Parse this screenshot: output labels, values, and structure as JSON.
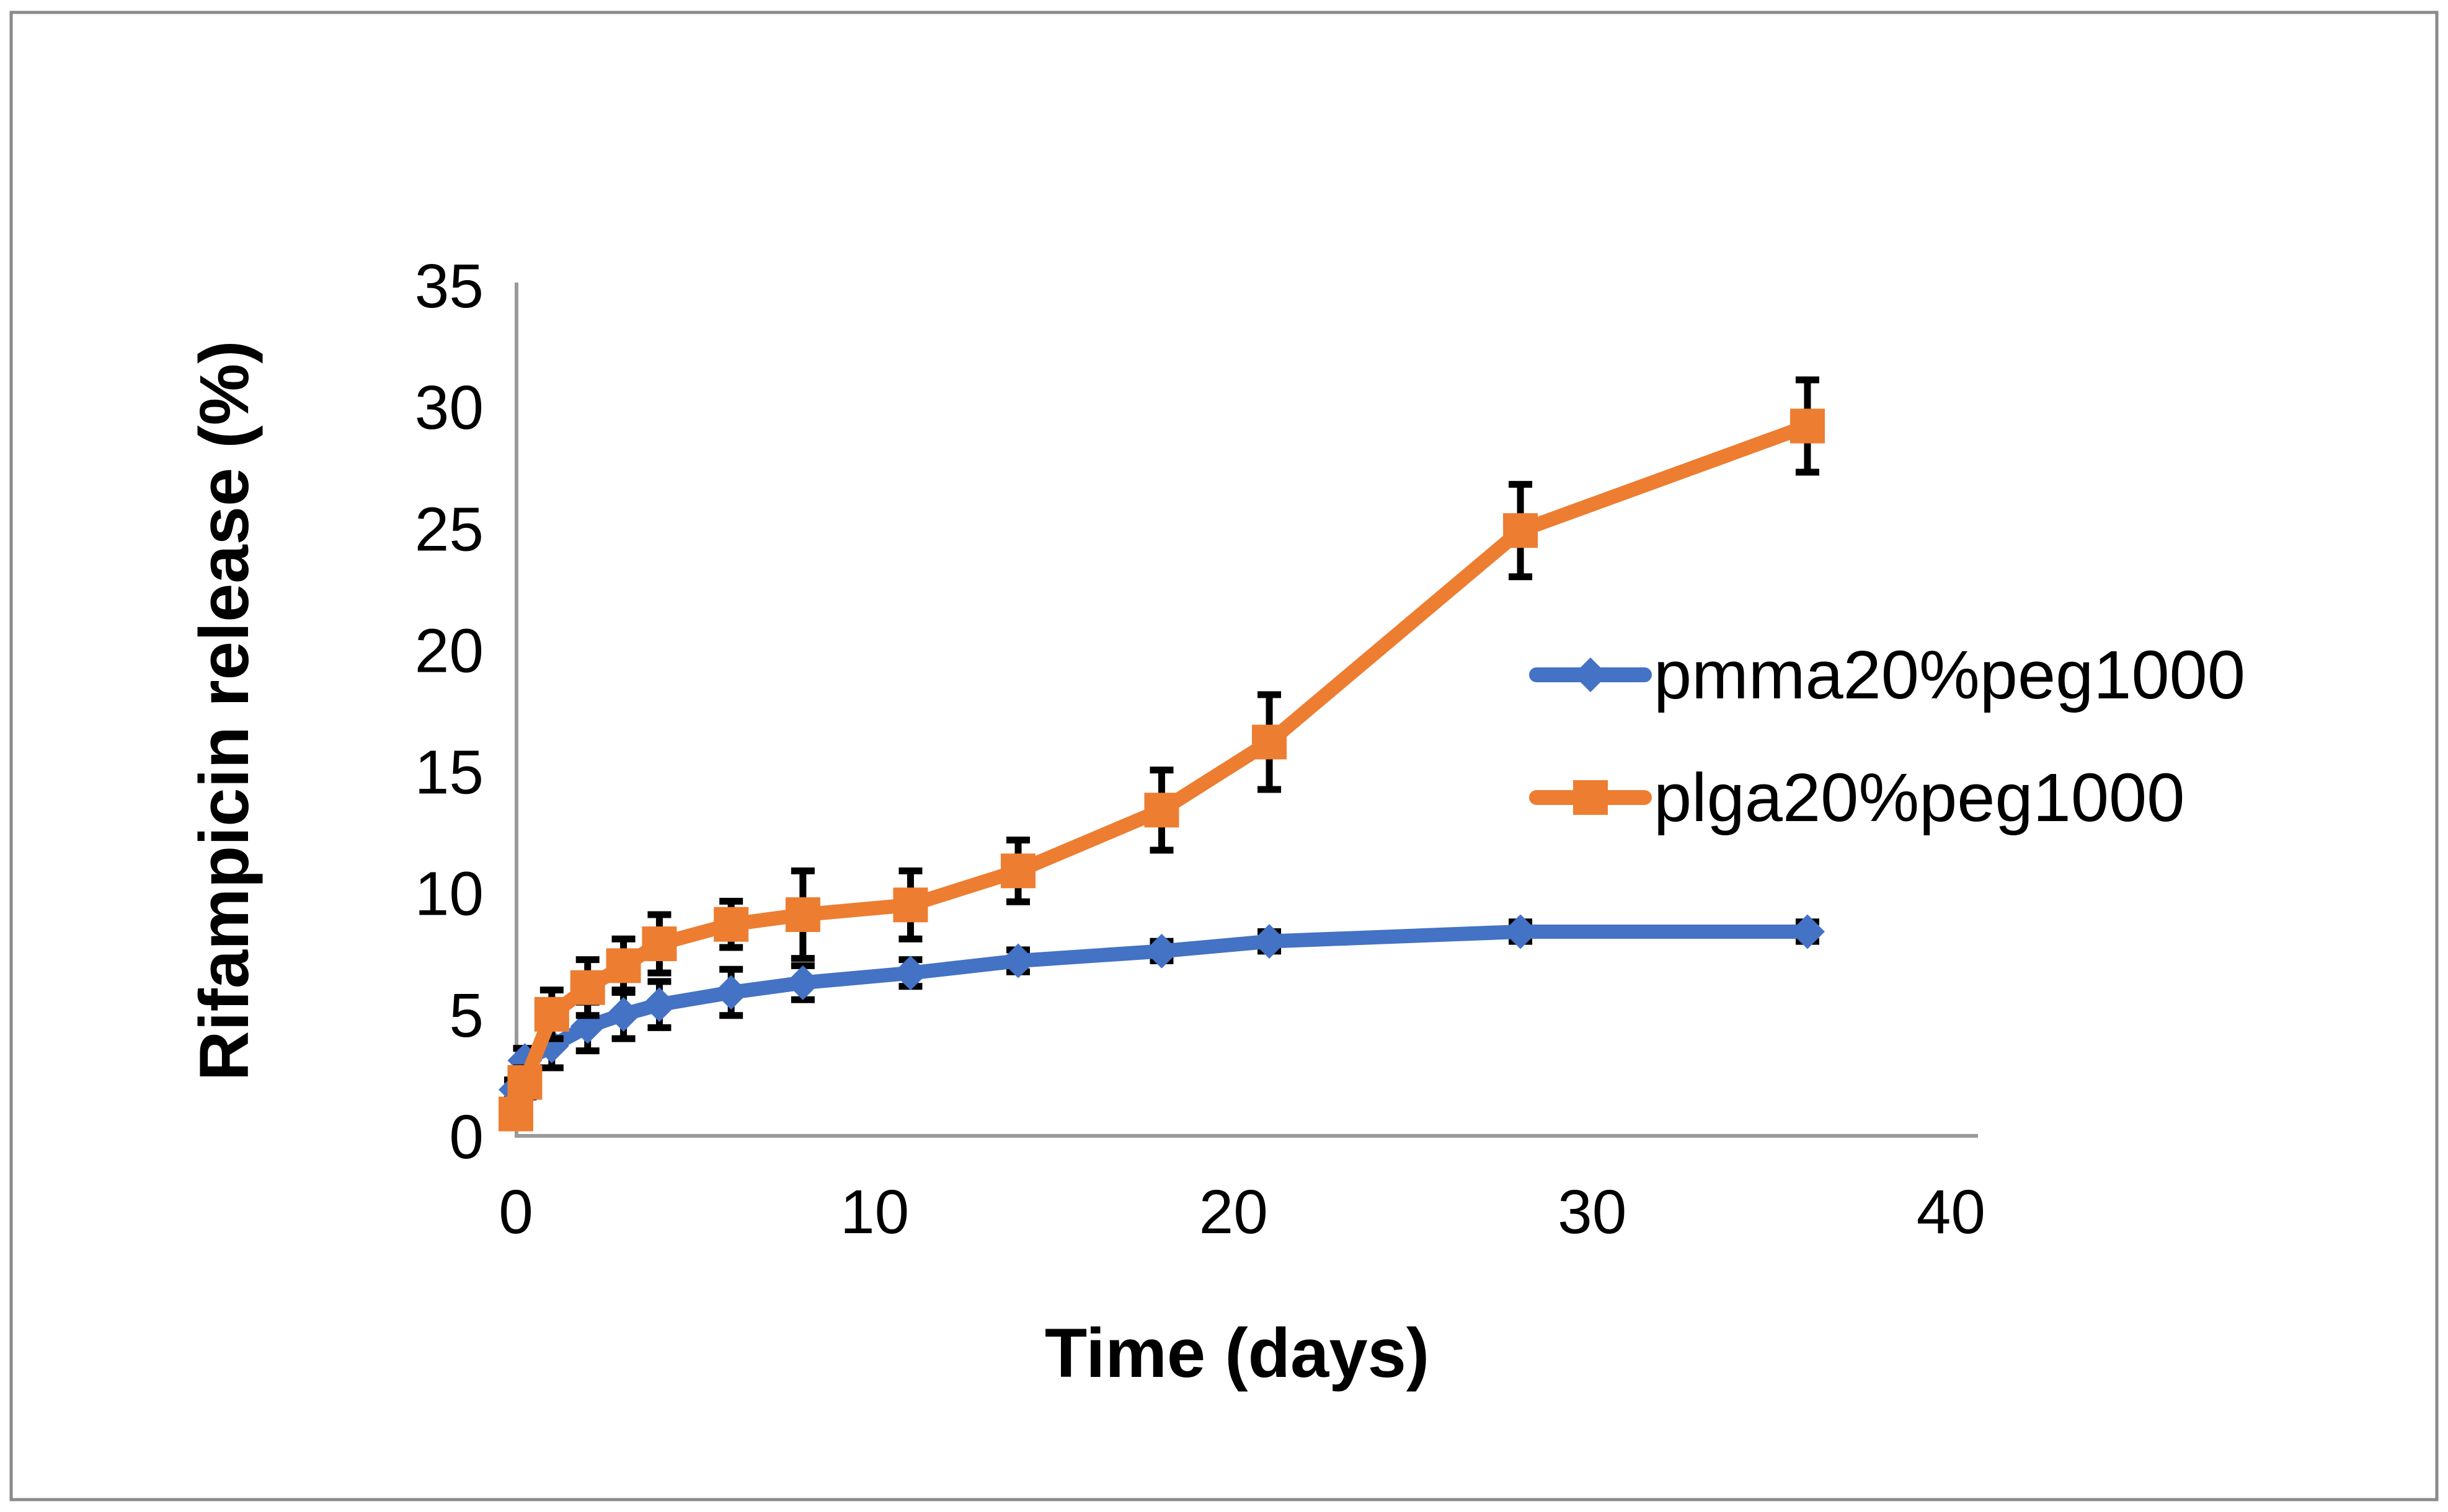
{
  "figure": {
    "background_color": "#ffffff",
    "border_color": "#8a8a8a",
    "axis_color": "#9a9a9a",
    "error_bar_color": "#000000",
    "text_color": "#000000"
  },
  "chart_data": {
    "type": "line",
    "title": "",
    "xlabel": "Time (days)",
    "ylabel": "Rifampicin release (%)",
    "xlim": [
      0,
      40
    ],
    "ylim": [
      0,
      35
    ],
    "x_ticks": [
      0,
      10,
      20,
      30,
      40
    ],
    "y_ticks": [
      0,
      5,
      10,
      15,
      20,
      25,
      30,
      35
    ],
    "grid": false,
    "legend_position": "center-right",
    "x": [
      0,
      0.25,
      1,
      2,
      3,
      4,
      6,
      8,
      11,
      14,
      18,
      21,
      28,
      36
    ],
    "series": [
      {
        "name": "pmma20%peg1000",
        "color": "#4472C4",
        "marker": "diamond",
        "values": [
          1.9,
          3.1,
          3.7,
          4.5,
          5.0,
          5.4,
          5.9,
          6.3,
          6.7,
          7.2,
          7.6,
          8.0,
          8.4,
          8.4
        ],
        "errors": [
          0.4,
          0.5,
          0.9,
          1.0,
          1.0,
          0.95,
          0.95,
          0.7,
          0.55,
          0.45,
          0.4,
          0.4,
          0.4,
          0.4
        ]
      },
      {
        "name": "plga20%peg1000",
        "color": "#ED7D31",
        "marker": "square",
        "values": [
          0.9,
          2.2,
          5.0,
          6.1,
          7.0,
          7.9,
          8.7,
          9.1,
          9.5,
          10.9,
          13.4,
          16.2,
          24.9,
          29.2
        ],
        "errors": [
          0.5,
          0.6,
          1.0,
          1.15,
          1.1,
          1.2,
          0.95,
          1.8,
          1.4,
          1.27,
          1.65,
          1.95,
          1.9,
          1.9
        ]
      }
    ]
  }
}
